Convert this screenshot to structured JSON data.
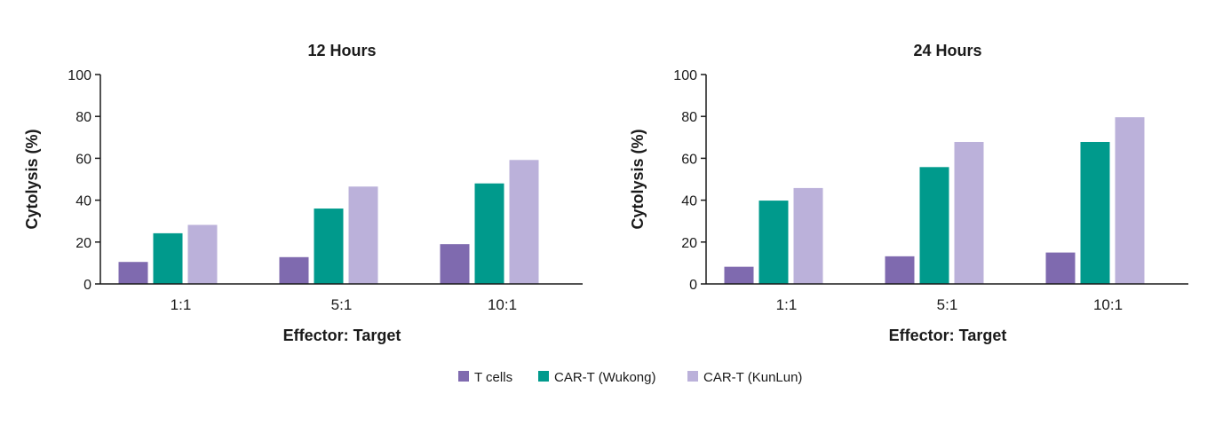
{
  "chart_data": [
    {
      "type": "bar",
      "title": "12 Hours",
      "xlabel": "Effector: Target",
      "ylabel": "Cytolysis (%)",
      "ylim": [
        0,
        100
      ],
      "yticks": [
        0,
        20,
        40,
        60,
        80,
        100
      ],
      "categories": [
        "1:1",
        "5:1",
        "10:1"
      ],
      "series": [
        {
          "name": "T cells",
          "values": [
            10.5,
            12.8,
            19
          ]
        },
        {
          "name": "CAR-T (Wukong)",
          "values": [
            24.2,
            36,
            48
          ]
        },
        {
          "name": "CAR-T (KunLun)",
          "values": [
            28.2,
            46.5,
            59.2
          ]
        }
      ]
    },
    {
      "type": "bar",
      "title": "24 Hours",
      "xlabel": "Effector: Target",
      "ylabel": "Cytolysis (%)",
      "ylim": [
        0,
        100
      ],
      "yticks": [
        0,
        20,
        40,
        60,
        80,
        100
      ],
      "categories": [
        "1:1",
        "5:1",
        "10:1"
      ],
      "series": [
        {
          "name": "T cells",
          "values": [
            8.2,
            13.2,
            15
          ]
        },
        {
          "name": "CAR-T (Wukong)",
          "values": [
            39.8,
            55.8,
            67.8
          ]
        },
        {
          "name": "CAR-T (KunLun)",
          "values": [
            45.8,
            67.8,
            79.6
          ]
        }
      ]
    }
  ],
  "legend": {
    "placement": "bottom-center",
    "items": [
      {
        "label": "T cells",
        "color": "#7f6aaf"
      },
      {
        "label": "CAR-T (Wukong)",
        "color": "#009a8c"
      },
      {
        "label": "CAR-T (KunLun)",
        "color": "#bbb1da"
      }
    ]
  },
  "colors": {
    "axis": "#1a1a1a",
    "series": [
      "#7f6aaf",
      "#009a8c",
      "#bbb1da"
    ]
  }
}
